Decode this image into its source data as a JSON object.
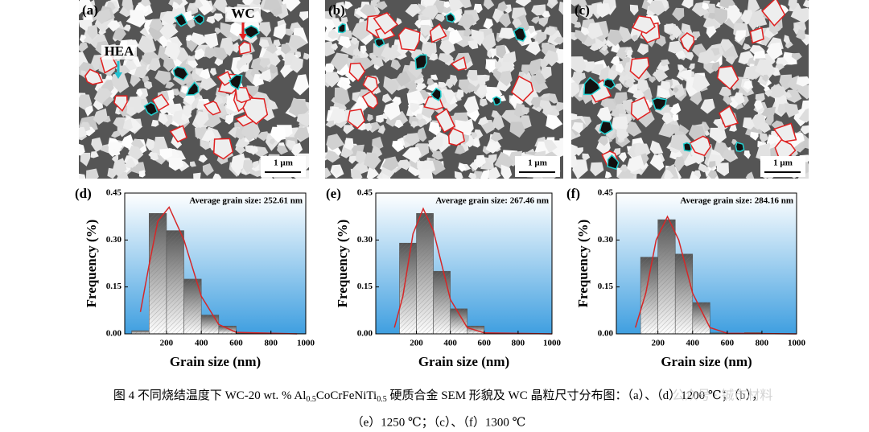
{
  "figure": {
    "panels": [
      {
        "label": "(a)",
        "annotations": [
          "WC",
          "HEA"
        ],
        "scale_bar": "1 µm"
      },
      {
        "label": "(b)",
        "scale_bar": "1 µm"
      },
      {
        "label": "(c)",
        "scale_bar": "1 µm"
      }
    ]
  },
  "chart_data": [
    {
      "type": "histogram",
      "panel_label": "(d)",
      "annotation": "Average grain size: 252.61 nm",
      "xlabel": "Grain size (nm)",
      "ylabel": "Frequency (%)",
      "color": "#555555",
      "bins": [
        0,
        100,
        200,
        300,
        400,
        500,
        600,
        700,
        800,
        900,
        1000
      ],
      "values": [
        0.01,
        0.385,
        0.33,
        0.175,
        0.06,
        0.025,
        0.002,
        0.001,
        0.001,
        0.001
      ],
      "fit": {
        "color": "#d62728",
        "x": [
          50,
          100,
          150,
          215,
          300,
          400,
          500,
          600,
          950
        ],
        "values": [
          0.07,
          0.22,
          0.36,
          0.405,
          0.3,
          0.12,
          0.03,
          0.005,
          0
        ]
      },
      "xlim": [
        -40,
        1000
      ],
      "ylim": [
        0,
        0.45
      ],
      "xticks": [
        200,
        400,
        600,
        800,
        1000
      ],
      "yticks": [
        {
          "value": 0,
          "label": "0.00"
        },
        {
          "value": 0.15,
          "label": "0.15"
        },
        {
          "value": 0.3,
          "label": "0.30"
        },
        {
          "value": 0.45,
          "label": "0.45"
        }
      ]
    },
    {
      "type": "histogram",
      "panel_label": "(e)",
      "annotation": "Average grain size: 267.46 nm",
      "xlabel": "Grain size (nm)",
      "ylabel": "Frequency (%)",
      "color": "#555555",
      "bins": [
        100,
        200,
        300,
        400,
        500,
        600,
        700,
        800,
        900
      ],
      "values": [
        0.29,
        0.385,
        0.2,
        0.08,
        0.025,
        0.003,
        0.002,
        0.001
      ],
      "fit": {
        "color": "#d62728",
        "x": [
          70,
          120,
          180,
          240,
          300,
          400,
          500,
          600,
          1000
        ],
        "values": [
          0.02,
          0.12,
          0.32,
          0.4,
          0.33,
          0.11,
          0.02,
          0.003,
          0
        ]
      },
      "xlim": [
        -40,
        1000
      ],
      "ylim": [
        0,
        0.45
      ],
      "xticks": [
        200,
        400,
        600,
        800,
        1000
      ],
      "yticks": [
        {
          "value": 0,
          "label": "0.00"
        },
        {
          "value": 0.15,
          "label": "0.15"
        },
        {
          "value": 0.3,
          "label": "0.30"
        },
        {
          "value": 0.45,
          "label": "0.45"
        }
      ]
    },
    {
      "type": "histogram",
      "panel_label": "(f)",
      "annotation": "Average grain size: 284.16 nm",
      "xlabel": "Grain size (nm)",
      "ylabel": "Frequency (%)",
      "color": "#555555",
      "bins": [
        100,
        200,
        300,
        400,
        500,
        600,
        700,
        800
      ],
      "values": [
        0.245,
        0.365,
        0.255,
        0.1,
        0.003,
        0.001,
        0.004
      ],
      "fit": {
        "color": "#d62728",
        "x": [
          70,
          130,
          190,
          255,
          320,
          400,
          500,
          600,
          1000
        ],
        "values": [
          0.02,
          0.13,
          0.3,
          0.375,
          0.3,
          0.13,
          0.02,
          0.002,
          0
        ]
      },
      "xlim": [
        -40,
        1000
      ],
      "ylim": [
        0,
        0.45
      ],
      "xticks": [
        200,
        400,
        600,
        800,
        1000
      ],
      "yticks": [
        {
          "value": 0,
          "label": "0.00"
        },
        {
          "value": 0.15,
          "label": "0.15"
        },
        {
          "value": 0.3,
          "label": "0.30"
        },
        {
          "value": 0.45,
          "label": "0.45"
        }
      ]
    }
  ],
  "caption": {
    "line1": [
      {
        "text": "图 4  不同烧结温度下 WC-20 wt. % Al"
      },
      {
        "text": "0.5",
        "subscript": true
      },
      {
        "text": "CoCrFeNiTi"
      },
      {
        "text": "0.5",
        "subscript": true
      },
      {
        "text": " 硬质合金 SEM 形貌及 WC 晶粒尺寸分布图：（a）、（d）1200 ℃；（b），"
      }
    ],
    "line2": "（e）1250 ℃；（c）、（f）1300 ℃"
  },
  "watermark": "公众号 · 铖市材料"
}
